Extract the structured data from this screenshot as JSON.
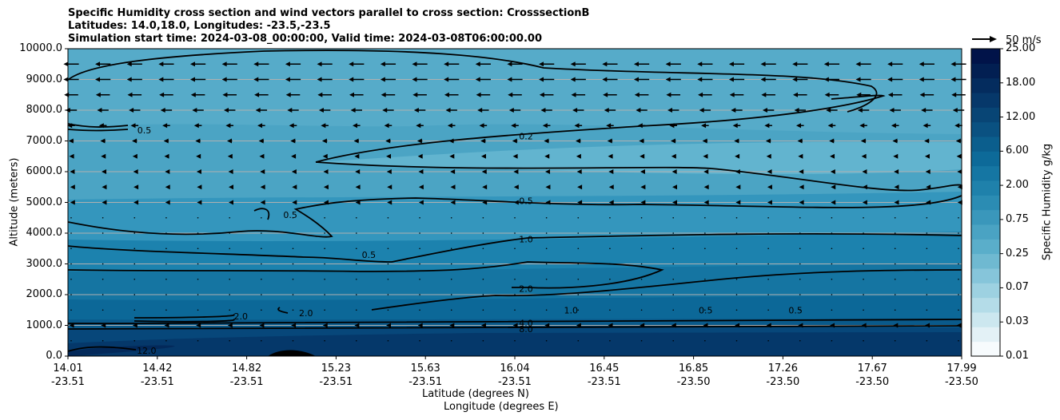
{
  "title": {
    "line1": "Specific Humidity cross section and wind vectors parallel to cross section: CrosssectionB",
    "line2": "Latitudes: 14.0,18.0, Longitudes: -23.5,-23.5",
    "line3": "Simulation start time: 2024-03-08_00:00:00, Valid time: 2024-03-08T06:00:00.00"
  },
  "axes": {
    "ylabel": "Altitude (meters)",
    "xlabel_lat": "Latitude (degrees N)",
    "xlabel_lon": "Longitude (degrees E)",
    "ylim": [
      0,
      10000
    ],
    "yticks": [
      "0.0",
      "1000.0",
      "2000.0",
      "3000.0",
      "4000.0",
      "5000.0",
      "6000.0",
      "7000.0",
      "8000.0",
      "9000.0",
      "10000.0"
    ],
    "xticks": [
      {
        "lat": "14.01",
        "lon": "-23.51"
      },
      {
        "lat": "14.42",
        "lon": "-23.51"
      },
      {
        "lat": "14.82",
        "lon": "-23.51"
      },
      {
        "lat": "15.23",
        "lon": "-23.51"
      },
      {
        "lat": "15.63",
        "lon": "-23.51"
      },
      {
        "lat": "16.04",
        "lon": "-23.51"
      },
      {
        "lat": "16.45",
        "lon": "-23.51"
      },
      {
        "lat": "16.85",
        "lon": "-23.50"
      },
      {
        "lat": "17.26",
        "lon": "-23.50"
      },
      {
        "lat": "17.67",
        "lon": "-23.50"
      },
      {
        "lat": "17.99",
        "lon": "-23.50"
      }
    ],
    "grid": "horizontal"
  },
  "colorbar": {
    "label": "Specific Humidity g/kg",
    "ticks": [
      "0.01",
      "0.03",
      "0.07",
      "0.25",
      "0.75",
      "2.00",
      "6.00",
      "12.00",
      "18.00",
      "25.00"
    ],
    "colors": [
      "#f7fbfd",
      "#e3f1f6",
      "#cce7ef",
      "#b4dce8",
      "#9dd1e1",
      "#86c5da",
      "#6fb9d1",
      "#5aaeca",
      "#4aa3c3",
      "#3a97bb",
      "#2b8cb3",
      "#1f81ab",
      "#1576a3",
      "#0d6a99",
      "#0b5e8d",
      "#0a5181",
      "#084575",
      "#06386a",
      "#042c5e",
      "#021f52",
      "#011349"
    ]
  },
  "reference_vector": "50 m/s",
  "chart_data": {
    "type": "contourf",
    "variable": "Specific Humidity",
    "units": "g/kg",
    "x_range_lat": [
      14.01,
      17.99
    ],
    "y_range_m": [
      0,
      10000
    ],
    "contour_labels": [
      {
        "label": "0.2",
        "lat": 16.05,
        "alt": 7150
      },
      {
        "label": "0.5",
        "lat": 14.35,
        "alt": 7350
      },
      {
        "label": "0.5",
        "lat": 15.0,
        "alt": 4600
      },
      {
        "label": "0.5",
        "lat": 15.35,
        "alt": 3300
      },
      {
        "label": "0.5",
        "lat": 16.05,
        "alt": 5050
      },
      {
        "label": "0.5",
        "lat": 16.85,
        "alt": 1500
      },
      {
        "label": "0.5",
        "lat": 17.25,
        "alt": 1500
      },
      {
        "label": "1.0",
        "lat": 16.05,
        "alt": 3800
      },
      {
        "label": "1.0",
        "lat": 16.25,
        "alt": 1500
      },
      {
        "label": "2.0",
        "lat": 16.05,
        "alt": 2200
      },
      {
        "label": "2.0",
        "lat": 14.78,
        "alt": 1300
      },
      {
        "label": "2.0",
        "lat": 15.07,
        "alt": 1400
      },
      {
        "label": "4.0",
        "lat": 16.05,
        "alt": 1080
      },
      {
        "label": "8.0",
        "lat": 16.05,
        "alt": 880
      },
      {
        "label": "12.0",
        "lat": 14.36,
        "alt": 180
      }
    ],
    "wind_levels_m": [
      9500,
      9000,
      8500,
      8000,
      7500,
      7000,
      6500,
      6000,
      5500,
      5000,
      4500,
      4000,
      3500,
      3000,
      2500,
      2000,
      1500,
      1000,
      500
    ],
    "wind_u_ms": [
      -12,
      -12,
      -11,
      -9,
      -6,
      -4,
      -3,
      -2,
      -1.5,
      -1.5,
      -1,
      -1,
      -0.5,
      -0.5,
      -0.5,
      -0.5,
      -0.5,
      -3,
      -0.5
    ],
    "terrain_peak": {
      "lat": 15.0,
      "alt": 220
    }
  }
}
